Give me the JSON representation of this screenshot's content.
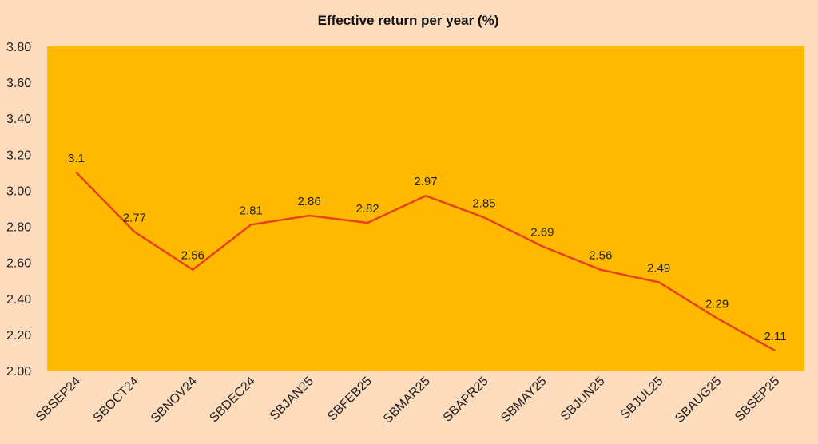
{
  "chart_data": {
    "type": "line",
    "title": "Effective return per year (%)",
    "xlabel": "",
    "ylabel": "",
    "categories": [
      "SBSEP24",
      "SBOCT24",
      "SBNOV24",
      "SBDEC24",
      "SBJAN25",
      "SBFEB25",
      "SBMAR25",
      "SBAPR25",
      "SBMAY25",
      "SBJUN25",
      "SBJUL25",
      "SBAUG25",
      "SBSEP25"
    ],
    "series": [
      {
        "values": [
          3.1,
          2.77,
          2.56,
          2.81,
          2.86,
          2.82,
          2.97,
          2.85,
          2.69,
          2.56,
          2.49,
          2.29,
          2.11
        ],
        "labels": [
          "3.1",
          "2.77",
          "2.56",
          "2.81",
          "2.86",
          "2.82",
          "2.97",
          "2.85",
          "2.69",
          "2.56",
          "2.49",
          "2.29",
          "2.11"
        ]
      }
    ],
    "ylim": [
      2.0,
      3.8
    ],
    "yticks": [
      "2.00",
      "2.20",
      "2.40",
      "2.60",
      "2.80",
      "3.00",
      "3.20",
      "3.40",
      "3.60",
      "3.80"
    ],
    "grid": false,
    "legend": "none",
    "colors": {
      "background": "#fddbbd",
      "plot_area": "#ffba00",
      "line": "#e8401c"
    }
  }
}
